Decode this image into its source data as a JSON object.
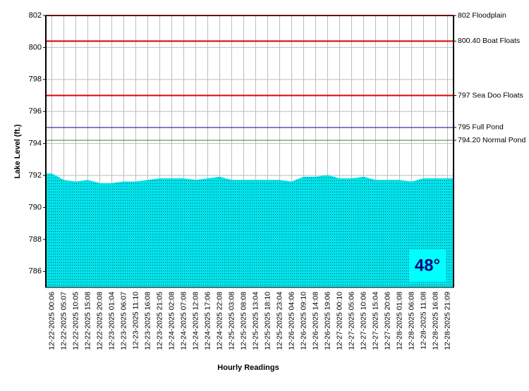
{
  "chart_data": {
    "type": "area",
    "x_label": "Hourly Readings",
    "y_label": "Lake Level (ft.)",
    "categories": [
      "12-22-2025 00:06",
      "12-22-2025 05:07",
      "12-22-2025 10:05",
      "12-22-2025 15:08",
      "12-22-2025 20:08",
      "12-23-2025 01:04",
      "12-23-2025 06:07",
      "12-23-2025 11:10",
      "12-23-2025 16:08",
      "12-23-2025 21:05",
      "12-24-2025 02:08",
      "12-24-2025 07:08",
      "12-24-2025 12:08",
      "12-24-2025 17:06",
      "12-24-2025 22:08",
      "12-25-2025 03:08",
      "12-25-2025 08:08",
      "12-25-2025 13:04",
      "12-25-2025 18:10",
      "12-25-2025 23:04",
      "12-26-2025 04:06",
      "12-26-2025 09:10",
      "12-26-2025 14:08",
      "12-26-2025 19:06",
      "12-27-2025 00:10",
      "12-27-2025 05:06",
      "12-27-2025 10:06",
      "12-27-2025 15:04",
      "12-27-2025 20:06",
      "12-28-2025 01:08",
      "12-28-2025 06:08",
      "12-28-2025 11:08",
      "12-28-2025 16:08",
      "12-28-2025 21:09"
    ],
    "values": [
      792.1,
      791.7,
      791.6,
      791.7,
      791.5,
      791.5,
      791.6,
      791.6,
      791.7,
      791.8,
      791.8,
      791.8,
      791.7,
      791.8,
      791.9,
      791.7,
      791.7,
      791.7,
      791.7,
      791.7,
      791.6,
      791.9,
      791.9,
      792.0,
      791.8,
      791.8,
      791.9,
      791.7,
      791.7,
      791.7,
      791.6,
      791.8,
      791.8,
      791.8
    ],
    "color": "#00e3ea",
    "ylim": [
      785,
      802
    ],
    "yticks": [
      786,
      788,
      790,
      792,
      794,
      796,
      798,
      800,
      802
    ],
    "grid": true,
    "reference_lines": [
      {
        "value": 802,
        "label": "802 Floodplain",
        "color": "#e00000"
      },
      {
        "value": 800.4,
        "label": "800.40 Boat Floats",
        "color": "#e00000"
      },
      {
        "value": 797,
        "label": "797 Sea Doo Floats",
        "color": "#e00000"
      },
      {
        "value": 795,
        "label": "795 Full Pond",
        "color": "#000080"
      },
      {
        "value": 794.2,
        "label": "794.20 Normal Pond",
        "color": "#2e8b2e"
      }
    ],
    "badge": "48°"
  }
}
